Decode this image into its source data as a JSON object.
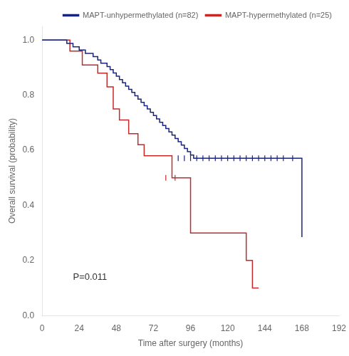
{
  "chart_data": {
    "type": "line",
    "xlabel": "Time after surgery (months)",
    "ylabel": "Overall survival (probability)",
    "xlim": [
      0,
      192
    ],
    "ylim": [
      0.0,
      1.05
    ],
    "xticks": [
      0,
      24,
      48,
      72,
      96,
      120,
      144,
      168,
      192
    ],
    "yticks": [
      {
        "value": 0.0,
        "label": "0.0"
      },
      0.2,
      0.4,
      0.6,
      0.8,
      {
        "value": 1.0,
        "label": "1.0"
      }
    ],
    "grid": false,
    "legend": "upper right",
    "annotations": [
      {
        "text": "P=0.011",
        "x": 20,
        "y": 0.13
      }
    ],
    "series": [
      {
        "name": "MAPT-unhypermethylated (n=82)",
        "color": "#1a237e",
        "line_style": "step",
        "x": [
          0,
          12,
          16,
          20,
          24,
          28,
          30,
          33,
          36,
          38,
          40,
          42,
          44,
          46,
          48,
          50,
          52,
          54,
          56,
          58,
          60,
          62,
          64,
          66,
          68,
          70,
          72,
          74,
          76,
          78,
          80,
          82,
          84,
          86,
          88,
          90,
          92,
          94,
          96,
          98,
          100,
          102,
          104,
          108,
          112,
          116,
          120,
          124,
          128,
          162,
          168
        ],
        "values": [
          1.0,
          1.0,
          0.988,
          0.976,
          0.964,
          0.952,
          0.952,
          0.94,
          0.928,
          0.916,
          0.916,
          0.904,
          0.893,
          0.881,
          0.869,
          0.857,
          0.845,
          0.833,
          0.821,
          0.81,
          0.798,
          0.786,
          0.774,
          0.762,
          0.75,
          0.738,
          0.726,
          0.714,
          0.702,
          0.69,
          0.679,
          0.667,
          0.655,
          0.643,
          0.631,
          0.619,
          0.607,
          0.595,
          0.583,
          0.571,
          0.571,
          0.571,
          0.571,
          0.571,
          0.571,
          0.571,
          0.571,
          0.571,
          0.571,
          0.571,
          0.285
        ]
      },
      {
        "name": "MAPT-hypermethylated (n=25)",
        "color": "#c62828",
        "line_style": "step",
        "x": [
          0,
          14,
          18,
          26,
          32,
          36,
          42,
          46,
          50,
          56,
          62,
          66,
          72,
          84,
          92,
          96,
          120,
          132,
          136,
          140
        ],
        "values": [
          1.0,
          1.0,
          0.96,
          0.91,
          0.91,
          0.88,
          0.83,
          0.75,
          0.71,
          0.66,
          0.62,
          0.58,
          0.58,
          0.5,
          0.5,
          0.3,
          0.3,
          0.2,
          0.1,
          0.1
        ]
      },
      {
        "type": "scatter",
        "marker": "|",
        "color": "#1a237e",
        "x": [
          88,
          92,
          96,
          100,
          104,
          108,
          112,
          116,
          120,
          124,
          128,
          132,
          136,
          140,
          144,
          148,
          152,
          156,
          162
        ],
        "values": [
          0.571,
          0.571,
          0.571,
          0.571,
          0.571,
          0.571,
          0.571,
          0.571,
          0.571,
          0.571,
          0.571,
          0.571,
          0.571,
          0.571,
          0.571,
          0.571,
          0.571,
          0.571,
          0.571
        ]
      },
      {
        "type": "scatter",
        "marker": "|",
        "color": "#c62828",
        "x": [
          80,
          86
        ],
        "values": [
          0.5,
          0.5
        ]
      }
    ]
  }
}
